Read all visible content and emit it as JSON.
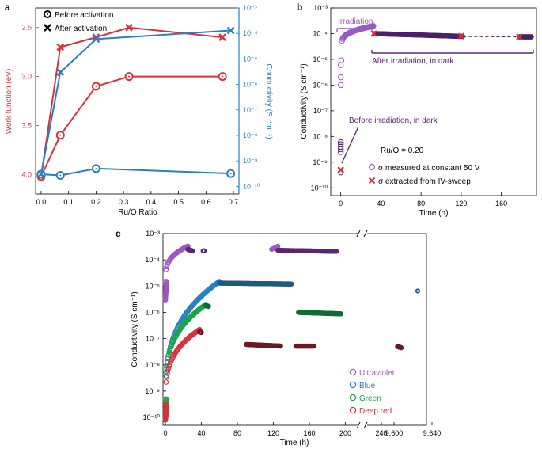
{
  "chart_data": [
    {
      "panel": "a",
      "type": "line",
      "xlabel": "Ru/O Ratio",
      "ylabel_left": "Work function (eV)",
      "ylabel_right": "Conductivity (S cm⁻¹)",
      "xlim": [
        -0.02,
        0.72
      ],
      "xticks": [
        "0.0",
        "0.1",
        "0.2",
        "0.3",
        "0.4",
        "0.5",
        "0.6",
        "0.7"
      ],
      "xtick_values": [
        0.0,
        0.1,
        0.2,
        0.3,
        0.4,
        0.5,
        0.6,
        0.7
      ],
      "ylim_left": [
        4.2,
        2.3
      ],
      "yticks_left": [
        "2.5",
        "3.0",
        "3.5",
        "4.0"
      ],
      "ytick_values_left": [
        2.5,
        3.0,
        3.5,
        4.0
      ],
      "ylim_right_log10": [
        -10.3,
        -3
      ],
      "yticks_right": [
        "10⁻³",
        "10⁻⁴",
        "10⁻⁵",
        "10⁻⁶",
        "10⁻⁷",
        "10⁻⁸",
        "10⁻⁹",
        "10⁻¹⁰"
      ],
      "ytick_exps_right": [
        -3,
        -4,
        -5,
        -6,
        -7,
        -8,
        -9,
        -10
      ],
      "legend": [
        {
          "label": "Before activation",
          "marker": "circle"
        },
        {
          "label": "After activation",
          "marker": "x"
        }
      ],
      "series": [
        {
          "name": "Work function, before activation",
          "axis": "left",
          "color": "#d7333a",
          "marker": "circle",
          "x": [
            0.0,
            0.07,
            0.2,
            0.32,
            0.66
          ],
          "y": [
            4.02,
            3.6,
            3.1,
            3.0,
            3.0
          ]
        },
        {
          "name": "Work function, after activation",
          "axis": "left",
          "color": "#d7333a",
          "marker": "x",
          "x": [
            0.0,
            0.07,
            0.2,
            0.32,
            0.66
          ],
          "y": [
            4.02,
            2.7,
            2.6,
            2.5,
            2.6
          ]
        },
        {
          "name": "Conductivity, before activation",
          "axis": "right",
          "color": "#2a7fc0",
          "marker": "circle",
          "x": [
            0.0,
            0.07,
            0.2,
            0.69
          ],
          "y": [
            3e-10,
            2.7e-10,
            5e-10,
            3.2e-10
          ]
        },
        {
          "name": "Conductivity, after activation",
          "axis": "right",
          "color": "#2a7fc0",
          "marker": "x",
          "x": [
            0.0,
            0.07,
            0.2,
            0.69
          ],
          "y": [
            3e-10,
            3e-06,
            6e-05,
            0.00013
          ]
        }
      ]
    },
    {
      "panel": "b",
      "type": "scatter",
      "xlabel": "Time (h)",
      "ylabel": "Conductivity (S cm⁻¹)",
      "xlim": [
        -10,
        195
      ],
      "xticks": [
        "0",
        "40",
        "80",
        "120",
        "160"
      ],
      "xtick_values": [
        0,
        40,
        80,
        120,
        160
      ],
      "ylim_log10": [
        -10.3,
        -3
      ],
      "yticks": [
        "10⁻³",
        "10⁻⁴",
        "10⁻⁵",
        "10⁻⁶",
        "10⁻⁷",
        "10⁻⁸",
        "10⁻⁹",
        "10⁻¹⁰"
      ],
      "ytick_exps": [
        -3,
        -4,
        -5,
        -6,
        -7,
        -8,
        -9,
        -10
      ],
      "annotations": [
        "Irradiation",
        "After irradiation, in dark",
        "Before irradiation, in dark",
        "Ru/O = 0.20"
      ],
      "legend": [
        {
          "label": "σ measured at constant 50 V",
          "marker": "circle",
          "color": "#9b59c0"
        },
        {
          "label": "σ extracted from IV-sweep",
          "marker": "x",
          "color": "#d7333a"
        }
      ],
      "series": [
        {
          "name": "σ measured at constant 50 V",
          "color": "#9b59c0",
          "marker": "circle",
          "x": [
            0,
            0,
            0,
            0,
            0,
            0.3,
            1,
            2,
            4,
            8,
            12,
            18,
            24,
            30,
            33,
            34,
            40,
            60,
            80,
            100,
            120,
            140,
            160,
            180,
            190
          ],
          "y": [
            4e-10,
            2.5e-09,
            4e-09,
            6e-09,
            2e-06,
            1e-05,
            4e-05,
            8e-05,
            0.00012,
            0.00015,
            0.00016,
            0.00017,
            0.00018,
            0.00019,
            0.0002,
            0.0001,
            9e-05,
            8.5e-05,
            8.2e-05,
            8e-05,
            7.8e-05,
            7.6e-05,
            7.5e-05,
            7.5e-05,
            7.4e-05
          ]
        },
        {
          "name": "σ extracted from IV-sweep",
          "color": "#d7333a",
          "marker": "x",
          "x": [
            0,
            33,
            120,
            178
          ],
          "y": [
            5e-10,
            0.0001,
            8e-05,
            7.5e-05
          ]
        }
      ]
    },
    {
      "panel": "c",
      "type": "scatter",
      "xlabel": "Time (h)",
      "ylabel": "Conductivity (S cm⁻¹)",
      "xticks": [
        "0",
        "40",
        "80",
        "120",
        "160",
        "200",
        "240",
        "9,600",
        "9,640"
      ],
      "xtick_values": [
        0,
        40,
        80,
        120,
        160,
        200,
        240,
        9600,
        9640
      ],
      "axis_break": "between 270 and 9,580",
      "ylim_log10": [
        -10.3,
        -3
      ],
      "yticks": [
        "10⁻³",
        "10⁻⁴",
        "10⁻⁵",
        "10⁻⁶",
        "10⁻⁷",
        "10⁻⁸",
        "10⁻⁹",
        "10⁻¹⁰"
      ],
      "ytick_exps": [
        -3,
        -4,
        -5,
        -6,
        -7,
        -8,
        -9,
        -10
      ],
      "legend": [
        {
          "label": "Ultraviolet",
          "color": "#9b59c0"
        },
        {
          "label": "Blue",
          "color": "#2a7fc0"
        },
        {
          "label": "Green",
          "color": "#1aa34a"
        },
        {
          "label": "Deep red",
          "color": "#d7333a"
        }
      ],
      "series": [
        {
          "name": "Ultraviolet",
          "color": "#9b59c0",
          "dark_color": "#5a2870",
          "growth": {
            "t0": 0,
            "t1": 25,
            "v0": 1.5e-05,
            "v1": 0.00033
          },
          "decay": [
            {
              "t0": 25,
              "t1": 30,
              "v0": 0.00025,
              "v1": 0.00022
            },
            {
              "t0": 42,
              "t1": 43,
              "v0": 0.00022,
              "v1": 0.00022
            }
          ],
          "growth2": {
            "t0": 118,
            "t1": 125,
            "v0": 0.00025,
            "v1": 0.00033
          },
          "decay2": [
            {
              "t0": 125,
              "t1": 190,
              "v0": 0.00023,
              "v1": 0.00021
            }
          ]
        },
        {
          "name": "Blue",
          "color": "#2a7fc0",
          "dark_color": "#1f5a80",
          "growth": {
            "t0": 0,
            "t1": 60,
            "v0": 2e-10,
            "v1": 1.5e-05
          },
          "decay": [
            {
              "t0": 60,
              "t1": 140,
              "v0": 1.3e-05,
              "v1": 1.2e-05
            }
          ],
          "later": {
            "t": 9625,
            "v": 6.5e-06
          }
        },
        {
          "name": "Green",
          "color": "#1aa34a",
          "dark_color": "#0e6b34",
          "growth": {
            "t0": 0,
            "t1": 45,
            "v0": 5e-10,
            "v1": 2e-06
          },
          "decay": [
            {
              "t0": 45,
              "t1": 48,
              "v0": 1.8e-06,
              "v1": 1.7e-06
            },
            {
              "t0": 148,
              "t1": 195,
              "v0": 1e-06,
              "v1": 8.8e-07
            }
          ]
        },
        {
          "name": "Deep red",
          "color": "#d7333a",
          "dark_color": "#6b1a22",
          "growth": {
            "t0": 0,
            "t1": 38,
            "v0": 3e-10,
            "v1": 2.2e-07
          },
          "decay": [
            {
              "t0": 38,
              "t1": 40,
              "v0": 1.8e-07,
              "v1": 1.7e-07
            },
            {
              "t0": 90,
              "t1": 128,
              "v0": 6e-08,
              "v1": 5.2e-08
            },
            {
              "t0": 145,
              "t1": 165,
              "v0": 5.2e-08,
              "v1": 5.2e-08
            },
            {
              "t0": 258,
              "t1": 262,
              "v0": 5e-08,
              "v1": 4.5e-08
            }
          ]
        }
      ]
    }
  ]
}
